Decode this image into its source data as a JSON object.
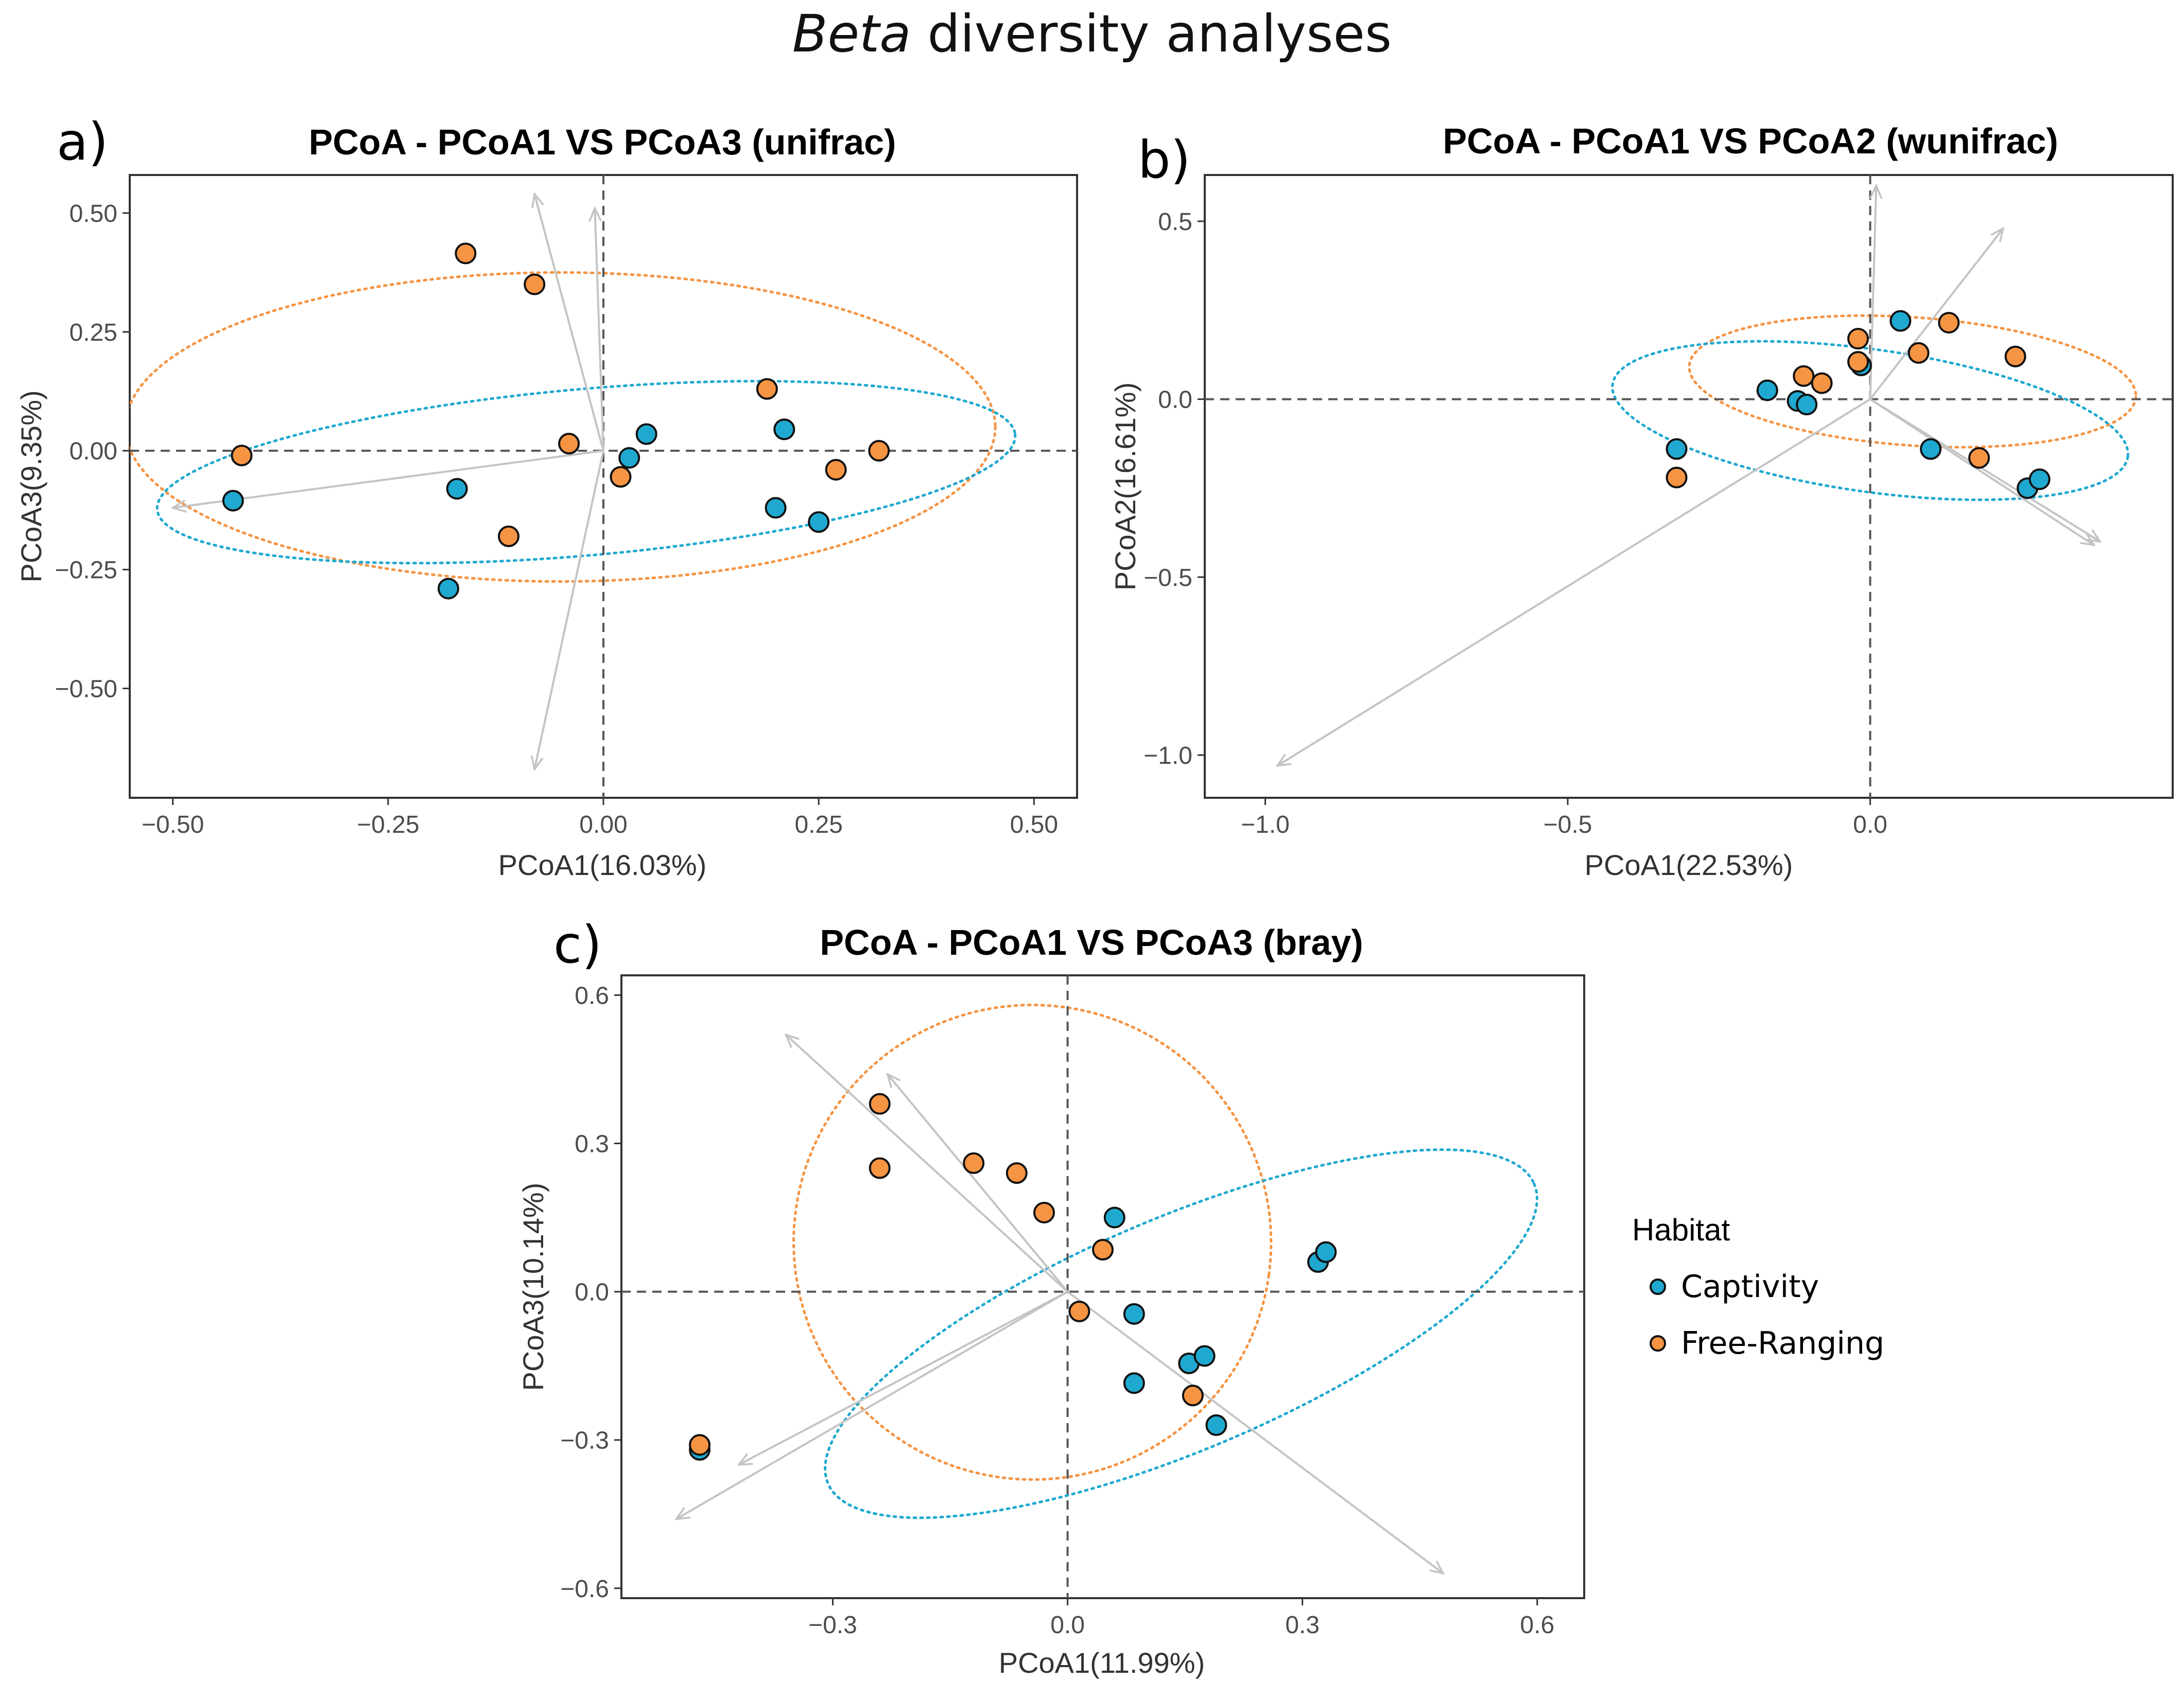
{
  "figure": {
    "title_italic": "Beta",
    "title_rest": " diversity analyses"
  },
  "colors": {
    "captivity": "#1fa9d0",
    "free_ranging": "#f59443",
    "arrow": "#c4c4c4"
  },
  "legend": {
    "title": "Habitat",
    "items": [
      {
        "label": "Captivity",
        "color": "#1fa9d0"
      },
      {
        "label": "Free-Ranging",
        "color": "#f59443"
      }
    ]
  },
  "chart_data": [
    {
      "id": "a",
      "letter": "a)",
      "type": "scatter",
      "title": "PCoA - PCoA1 VS PCoA3 (unifrac)",
      "xlabel": "PCoA1(16.03%)",
      "ylabel": "PCoA3(9.35%)",
      "xlim": [
        -0.55,
        0.55
      ],
      "ylim": [
        -0.73,
        0.58
      ],
      "xticks": [
        -0.5,
        -0.25,
        0.0,
        0.25,
        0.5
      ],
      "xtick_labels": [
        "-0.50",
        "-0.25",
        "0.00",
        "0.25",
        "0.50"
      ],
      "yticks": [
        -0.5,
        -0.25,
        0.0,
        0.25,
        0.5
      ],
      "ytick_labels": [
        "-0.50",
        "-0.25",
        "0.00",
        "0.25",
        "0.50"
      ],
      "series": [
        {
          "name": "Captivity",
          "points": [
            [
              -0.43,
              -0.105
            ],
            [
              -0.17,
              -0.08
            ],
            [
              -0.18,
              -0.29
            ],
            [
              0.03,
              -0.015
            ],
            [
              0.05,
              0.035
            ],
            [
              0.21,
              0.045
            ],
            [
              0.2,
              -0.12
            ],
            [
              0.25,
              -0.15
            ]
          ]
        },
        {
          "name": "Free-Ranging",
          "points": [
            [
              -0.42,
              -0.01
            ],
            [
              -0.16,
              0.415
            ],
            [
              -0.08,
              0.35
            ],
            [
              -0.04,
              0.015
            ],
            [
              -0.11,
              -0.18
            ],
            [
              0.02,
              -0.055
            ],
            [
              0.19,
              0.13
            ],
            [
              0.27,
              -0.04
            ],
            [
              0.32,
              0.0
            ]
          ]
        }
      ],
      "ellipses": [
        {
          "group": "Free-Ranging",
          "cx": -0.05,
          "cy": 0.05,
          "rx": 0.505,
          "ry": 0.325,
          "angle": 0
        },
        {
          "group": "Captivity",
          "cx": -0.02,
          "cy": -0.045,
          "rx": 0.5,
          "ry": 0.175,
          "angle": 5
        }
      ],
      "arrows": [
        [
          -0.5,
          -0.12
        ],
        [
          -0.08,
          0.54
        ],
        [
          -0.01,
          0.51
        ],
        [
          -0.08,
          -0.67
        ]
      ]
    },
    {
      "id": "b",
      "letter": "b)",
      "type": "scatter",
      "title": "PCoA - PCoA1 VS PCoA2 (wunifrac)",
      "xlabel": "PCoA1(22.53%)",
      "ylabel": "PCoA2(16.61%)",
      "xlim": [
        -1.1,
        0.5
      ],
      "ylim": [
        -1.12,
        0.63
      ],
      "xticks": [
        -1.0,
        -0.5,
        0.0
      ],
      "xtick_labels": [
        "-1.0",
        "-0.5",
        "0.0"
      ],
      "yticks": [
        -1.0,
        -0.5,
        0.0,
        0.5
      ],
      "ytick_labels": [
        "-1.0",
        "-0.5",
        "0.0",
        "0.5"
      ],
      "series": [
        {
          "name": "Captivity",
          "points": [
            [
              -0.32,
              -0.14
            ],
            [
              -0.17,
              0.025
            ],
            [
              -0.12,
              -0.005
            ],
            [
              -0.105,
              -0.015
            ],
            [
              -0.015,
              0.095
            ],
            [
              0.05,
              0.22
            ],
            [
              0.1,
              -0.14
            ],
            [
              0.26,
              -0.25
            ],
            [
              0.28,
              -0.225
            ]
          ]
        },
        {
          "name": "Free-Ranging",
          "points": [
            [
              -0.32,
              -0.22
            ],
            [
              -0.11,
              0.065
            ],
            [
              -0.08,
              0.045
            ],
            [
              -0.02,
              0.17
            ],
            [
              -0.02,
              0.105
            ],
            [
              0.08,
              0.13
            ],
            [
              0.13,
              0.215
            ],
            [
              0.18,
              -0.165
            ],
            [
              0.24,
              0.12
            ]
          ]
        }
      ],
      "ellipses": [
        {
          "group": "Free-Ranging",
          "cx": 0.07,
          "cy": 0.05,
          "rx": 0.37,
          "ry": 0.18,
          "angle": -4
        },
        {
          "group": "Captivity",
          "cx": 0.0,
          "cy": -0.06,
          "rx": 0.43,
          "ry": 0.2,
          "angle": -8
        }
      ],
      "arrows": [
        [
          -0.98,
          -1.03
        ],
        [
          0.22,
          0.48
        ],
        [
          0.01,
          0.6
        ],
        [
          0.38,
          -0.4
        ],
        [
          0.37,
          -0.41
        ]
      ]
    },
    {
      "id": "c",
      "letter": "c)",
      "type": "scatter",
      "title": "PCoA - PCoA1 VS PCoA3 (bray)",
      "xlabel": "PCoA1(11.99%)",
      "ylabel": "PCoA3(10.14%)",
      "xlim": [
        -0.57,
        0.66
      ],
      "ylim": [
        -0.62,
        0.64
      ],
      "xticks": [
        -0.3,
        0.0,
        0.3,
        0.6
      ],
      "xtick_labels": [
        "-0.3",
        "0.0",
        "0.3",
        "0.6"
      ],
      "yticks": [
        -0.6,
        -0.3,
        0.0,
        0.3,
        0.6
      ],
      "ytick_labels": [
        "-0.6",
        "-0.3",
        "0.0",
        "0.3",
        "0.6"
      ],
      "series": [
        {
          "name": "Captivity",
          "points": [
            [
              -0.47,
              -0.32
            ],
            [
              0.06,
              0.15
            ],
            [
              0.085,
              -0.045
            ],
            [
              0.085,
              -0.185
            ],
            [
              0.155,
              -0.145
            ],
            [
              0.175,
              -0.13
            ],
            [
              0.19,
              -0.27
            ],
            [
              0.32,
              0.06
            ],
            [
              0.33,
              0.08
            ]
          ]
        },
        {
          "name": "Free-Ranging",
          "points": [
            [
              -0.47,
              -0.31
            ],
            [
              -0.24,
              0.38
            ],
            [
              -0.24,
              0.25
            ],
            [
              -0.12,
              0.26
            ],
            [
              -0.065,
              0.24
            ],
            [
              -0.03,
              0.16
            ],
            [
              0.015,
              -0.04
            ],
            [
              0.045,
              0.085
            ],
            [
              0.16,
              -0.21
            ]
          ]
        }
      ],
      "ellipses": [
        {
          "group": "Free-Ranging",
          "cx": -0.045,
          "cy": 0.1,
          "rx": 0.305,
          "ry": 0.48,
          "angle": -8
        },
        {
          "group": "Captivity",
          "cx": 0.145,
          "cy": -0.085,
          "rx": 0.49,
          "ry": 0.235,
          "angle": 23
        }
      ],
      "arrows": [
        [
          -0.36,
          0.52
        ],
        [
          -0.23,
          0.44
        ],
        [
          -0.42,
          -0.35
        ],
        [
          -0.5,
          -0.46
        ],
        [
          0.48,
          -0.57
        ]
      ]
    }
  ]
}
